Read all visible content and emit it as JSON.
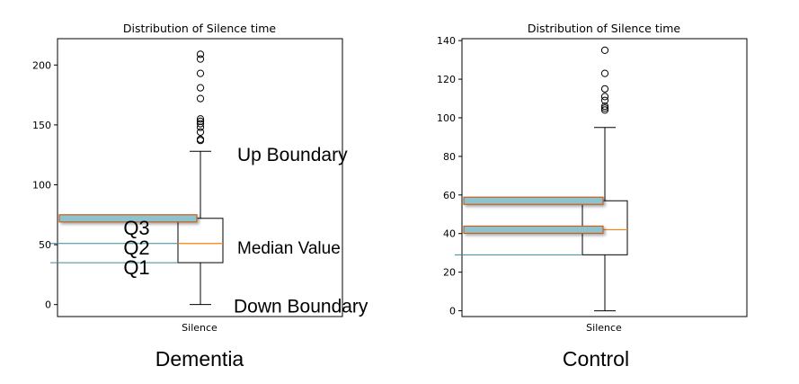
{
  "chart_data": [
    {
      "type": "box",
      "title": "Distribution of Silence time",
      "caption": "Dementia",
      "categories": [
        "Silence"
      ],
      "ylim": [
        -10,
        222
      ],
      "yticks": [
        0,
        50,
        100,
        150,
        200
      ],
      "grid": false,
      "box": {
        "whisker_low": 0,
        "q1": 35,
        "median": 51,
        "q3": 72,
        "whisker_high": 128,
        "outliers": [
          137,
          138,
          144,
          148,
          151,
          153,
          155,
          172,
          181,
          193,
          205,
          209
        ]
      },
      "annotations": {
        "up_boundary": "Up Boundary",
        "median_value": "Median Value",
        "down_boundary": "Down Boundary",
        "q3": "Q3",
        "q2": "Q2",
        "q1": "Q1"
      }
    },
    {
      "type": "box",
      "title": "Distribution of Silence time",
      "caption": "Control",
      "categories": [
        "Silence"
      ],
      "ylim": [
        -3,
        141
      ],
      "yticks": [
        0,
        20,
        40,
        60,
        80,
        100,
        120,
        140
      ],
      "grid": false,
      "box": {
        "whisker_low": 0,
        "q1": 29,
        "median": 42,
        "q3": 57,
        "whisker_high": 95,
        "outliers": [
          104,
          105,
          106,
          109,
          111,
          115,
          123,
          135
        ]
      }
    }
  ],
  "colors": {
    "median": "#ff7f0e",
    "highlight_fill": "#8fc3cc",
    "highlight_edge": "#c0622a",
    "guide_line": "#3a8a96",
    "axis": "#000000"
  }
}
